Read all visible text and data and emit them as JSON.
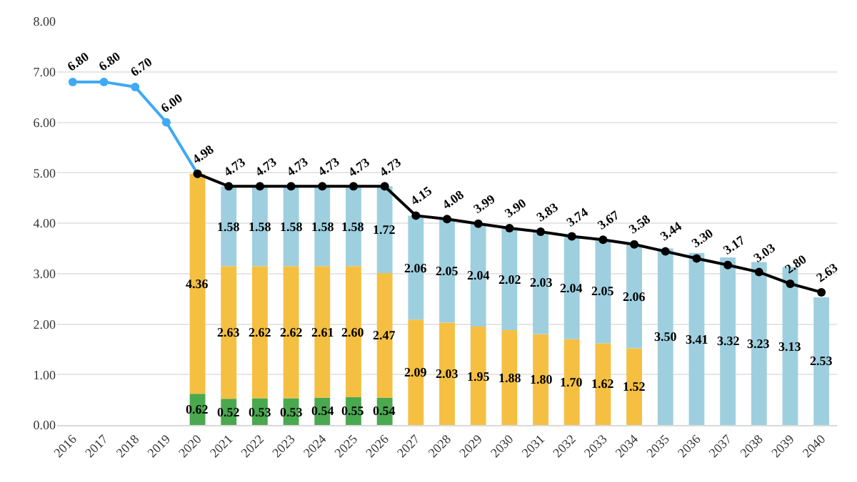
{
  "chart_data": {
    "type": "bar",
    "stacked": true,
    "categories": [
      "2016",
      "2017",
      "2018",
      "2019",
      "2020",
      "2021",
      "2022",
      "2023",
      "2024",
      "2025",
      "2026",
      "2027",
      "2028",
      "2029",
      "2030",
      "2031",
      "2032",
      "2033",
      "2034",
      "2035",
      "2036",
      "2037",
      "2038",
      "2039",
      "2040"
    ],
    "series": [
      {
        "color": "#4aa84f",
        "values": [
          null,
          null,
          null,
          null,
          0.62,
          0.52,
          0.53,
          0.53,
          0.54,
          0.55,
          0.54,
          null,
          null,
          null,
          null,
          null,
          null,
          null,
          null,
          null,
          null,
          null,
          null,
          null,
          null
        ],
        "value_labels": [
          null,
          null,
          null,
          null,
          "0.62",
          "0.52",
          "0.53",
          "0.53",
          "0.54",
          "0.55",
          "0.54",
          null,
          null,
          null,
          null,
          null,
          null,
          null,
          null,
          null,
          null,
          null,
          null,
          null,
          null
        ]
      },
      {
        "color": "#f5bf42",
        "values": [
          null,
          null,
          null,
          null,
          4.36,
          2.63,
          2.62,
          2.62,
          2.61,
          2.6,
          2.47,
          2.09,
          2.03,
          1.95,
          1.88,
          1.8,
          1.7,
          1.62,
          1.52,
          null,
          null,
          null,
          null,
          null,
          null
        ],
        "value_labels": [
          null,
          null,
          null,
          null,
          "4.36",
          "2.63",
          "2.62",
          "2.62",
          "2.61",
          "2.60",
          "2.47",
          "2.09",
          "2.03",
          "1.95",
          "1.88",
          "1.80",
          "1.70",
          "1.62",
          "1.52",
          null,
          null,
          null,
          null,
          null,
          null
        ]
      },
      {
        "color": "#9ecfdf",
        "values": [
          null,
          null,
          null,
          null,
          null,
          1.58,
          1.58,
          1.58,
          1.58,
          1.58,
          1.72,
          2.06,
          2.05,
          2.04,
          2.02,
          2.03,
          2.04,
          2.05,
          2.06,
          3.5,
          3.41,
          3.32,
          3.23,
          3.13,
          2.53
        ],
        "value_labels": [
          null,
          null,
          null,
          null,
          null,
          "1.58",
          "1.58",
          "1.58",
          "1.58",
          "1.58",
          "1.72",
          "2.06",
          "2.05",
          "2.04",
          "2.02",
          "2.03",
          "2.04",
          "2.05",
          "2.06",
          "3.50",
          "3.41",
          "3.32",
          "3.23",
          "3.13",
          "2.53"
        ]
      },
      {
        "type": "line",
        "color": "#3fa9f5",
        "values": [
          6.8,
          6.8,
          6.7,
          6.0,
          4.98,
          null,
          null,
          null,
          null,
          null,
          null,
          null,
          null,
          null,
          null,
          null,
          null,
          null,
          null,
          null,
          null,
          null,
          null,
          null,
          null
        ],
        "value_labels": [
          "6.80",
          "6.80",
          "6.70",
          "6.00",
          "4.98",
          null,
          null,
          null,
          null,
          null,
          null,
          null,
          null,
          null,
          null,
          null,
          null,
          null,
          null,
          null,
          null,
          null,
          null,
          null,
          null
        ]
      },
      {
        "type": "line",
        "color": "#000000",
        "values": [
          null,
          null,
          null,
          null,
          4.98,
          4.73,
          4.73,
          4.73,
          4.73,
          4.73,
          4.73,
          4.15,
          4.08,
          3.99,
          3.9,
          3.83,
          3.74,
          3.67,
          3.58,
          3.44,
          3.3,
          3.17,
          3.03,
          2.8,
          2.63
        ],
        "value_labels": [
          null,
          null,
          null,
          null,
          null,
          "4.73",
          "4.73",
          "4.73",
          "4.73",
          "4.73",
          "4.73",
          "4.15",
          "4.08",
          "3.99",
          "3.90",
          "3.83",
          "3.74",
          "3.67",
          "3.58",
          "3.44",
          "3.30",
          "3.17",
          "3.03",
          "2.80",
          "2.63"
        ]
      }
    ],
    "ylim": [
      0,
      8
    ],
    "yticks": [
      {
        "value": 0,
        "label": "0.00"
      },
      {
        "value": 1,
        "label": "1.00"
      },
      {
        "value": 2,
        "label": "2.00"
      },
      {
        "value": 3,
        "label": "3.00"
      },
      {
        "value": 4,
        "label": "4.00"
      },
      {
        "value": 5,
        "label": "5.00"
      },
      {
        "value": 6,
        "label": "6.00"
      },
      {
        "value": 7,
        "label": "7.00"
      },
      {
        "value": 8,
        "label": "8.00"
      }
    ],
    "grid": "y",
    "marker": "circle"
  }
}
